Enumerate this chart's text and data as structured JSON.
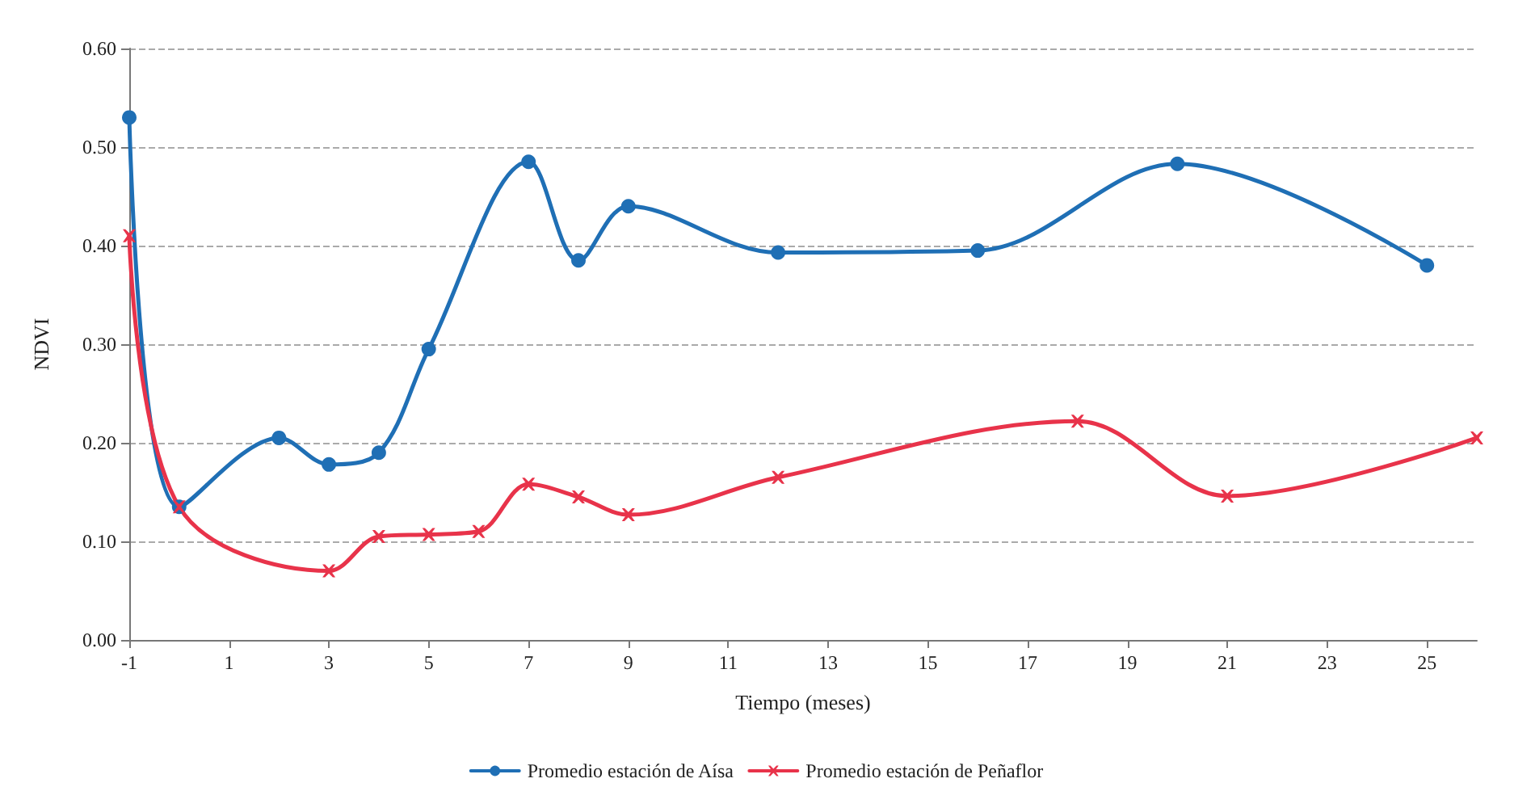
{
  "chart_data": {
    "type": "line",
    "xlabel": "Tiempo (meses)",
    "ylabel": "NDVI",
    "xlim": [
      -1,
      26
    ],
    "xticks": [
      -1,
      1,
      3,
      5,
      7,
      9,
      11,
      13,
      15,
      17,
      19,
      21,
      23,
      25
    ],
    "ylim": [
      0,
      0.6
    ],
    "yticks": [
      {
        "value": 0,
        "label": "0.00"
      },
      {
        "value": 0.1,
        "label": "0.10"
      },
      {
        "value": 0.2,
        "label": "0.20"
      },
      {
        "value": 0.3,
        "label": "0.30"
      },
      {
        "value": 0.4,
        "label": "0.40"
      },
      {
        "value": 0.5,
        "label": "0.50"
      },
      {
        "value": 0.6,
        "label": "0.60"
      }
    ],
    "grid": "y",
    "legend": "bottom",
    "line_style": "solid",
    "series": [
      {
        "name": "Promedio estación de Aísa",
        "color": "#1f6fb5",
        "marker": "circle",
        "x": [
          -1,
          0,
          2,
          3,
          4,
          5,
          7,
          8,
          9,
          12,
          16,
          20,
          25
        ],
        "values": [
          0.53,
          0.135,
          0.205,
          0.178,
          0.19,
          0.295,
          0.485,
          0.385,
          0.44,
          0.393,
          0.395,
          0.483,
          0.38
        ]
      },
      {
        "name": "Promedio estación de Peñaflor",
        "color": "#e8334a",
        "marker": "cross",
        "x": [
          -1,
          0,
          3,
          4,
          5,
          6,
          7,
          8,
          9,
          12,
          18,
          21,
          26
        ],
        "values": [
          0.41,
          0.135,
          0.07,
          0.105,
          0.107,
          0.11,
          0.158,
          0.145,
          0.127,
          0.165,
          0.222,
          0.146,
          0.205
        ]
      }
    ]
  }
}
